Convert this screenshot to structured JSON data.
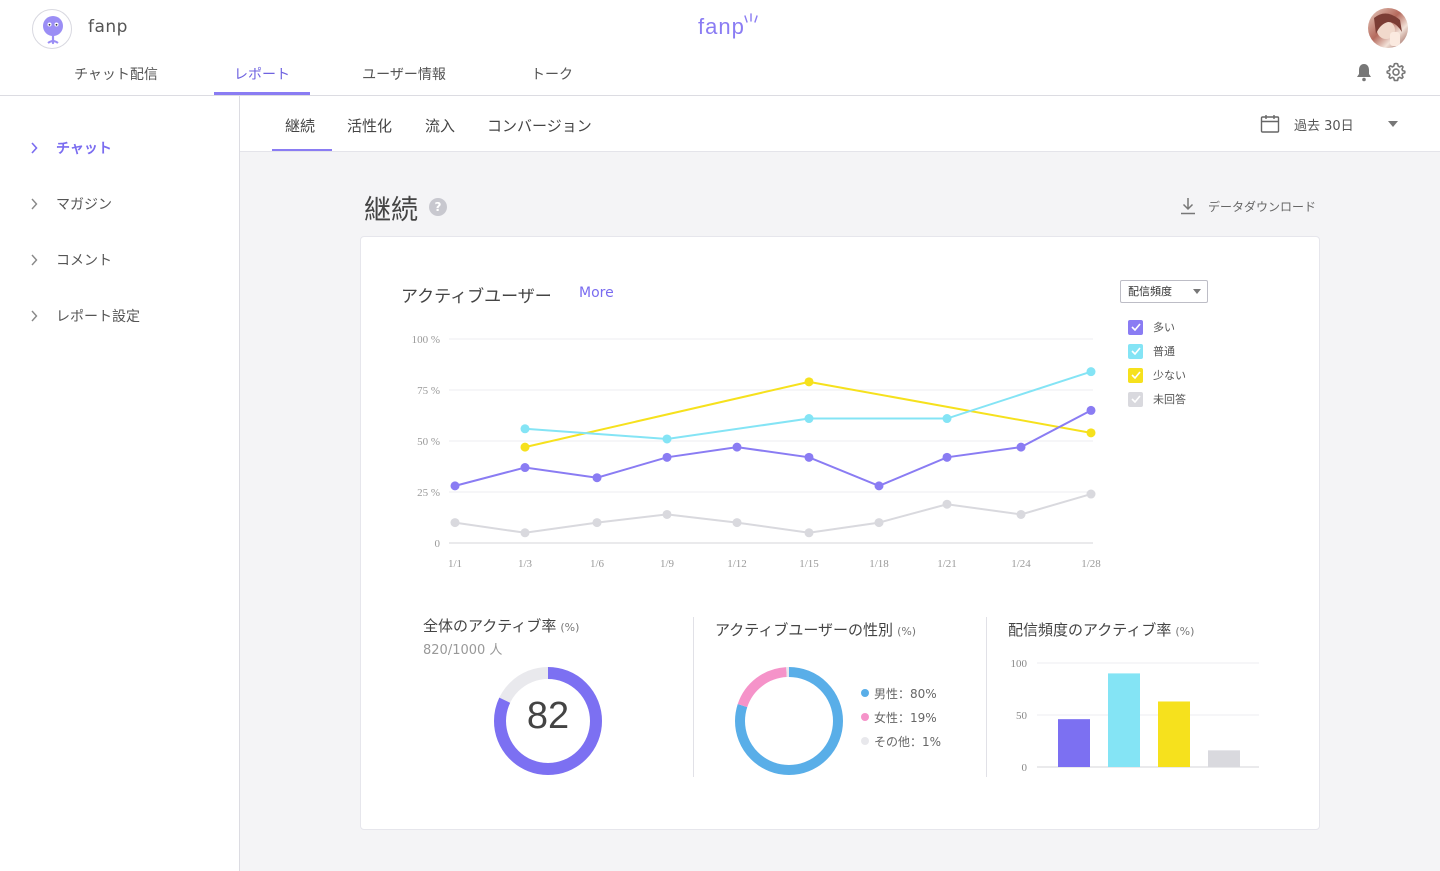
{
  "header": {
    "app_name": "fanp",
    "brand": "fanp",
    "nav_tabs": [
      "チャット配信",
      "レポート",
      "ユーザー情報",
      "トーク"
    ],
    "active_tab": "レポート"
  },
  "sidebar": {
    "items": [
      {
        "label": "チャット",
        "active": true
      },
      {
        "label": "マガジン",
        "active": false
      },
      {
        "label": "コメント",
        "active": false
      },
      {
        "label": "レポート設定",
        "active": false
      }
    ]
  },
  "subnav": {
    "tabs": [
      "継続",
      "活性化",
      "流入",
      "コンバージョン"
    ],
    "active": "継続",
    "period": "過去 30日"
  },
  "page": {
    "title": "継続",
    "help": "?",
    "download": "データダウンロード"
  },
  "active_users": {
    "title": "アクティブユーザー",
    "more": "More",
    "select_value": "配信頻度",
    "legend": [
      {
        "label": "多い",
        "color": "#8a7cf3"
      },
      {
        "label": "普通",
        "color": "#84e4f5"
      },
      {
        "label": "少ない",
        "color": "#f6e11d"
      },
      {
        "label": "未回答",
        "color": "#d9d9de"
      }
    ]
  },
  "stats": {
    "overall": {
      "title": "全体のアクティブ率",
      "unit": "(%)",
      "count": "820/1000 人",
      "value": "82"
    },
    "gender": {
      "title": "アクティブユーザーの性別",
      "unit": "(%)",
      "items": [
        {
          "label": "男性：80%",
          "color": "#59aee8"
        },
        {
          "label": "女性：19%",
          "color": "#f593c9"
        },
        {
          "label": "その他：1%",
          "color": "#e8e8ec"
        }
      ]
    },
    "frequency": {
      "title": "配信頻度のアクティブ率",
      "unit": "(%)"
    }
  },
  "chart_data": [
    {
      "type": "line",
      "title": "アクティブユーザー",
      "x": [
        "1/1",
        "1/3",
        "1/6",
        "1/9",
        "1/12",
        "1/15",
        "1/18",
        "1/21",
        "1/24",
        "1/28"
      ],
      "y_ticks": [
        "0",
        "25 %",
        "50 %",
        "75 %",
        "100 %"
      ],
      "ylim": [
        0,
        100
      ],
      "legend_position": "right",
      "series": [
        {
          "name": "多い",
          "color": "#8a7cf3",
          "values": [
            28,
            37,
            32,
            42,
            47,
            42,
            28,
            42,
            47,
            65
          ]
        },
        {
          "name": "普通",
          "color": "#84e4f5",
          "values": [
            null,
            56,
            null,
            51,
            null,
            61,
            null,
            61,
            null,
            84
          ]
        },
        {
          "name": "少ない",
          "color": "#f6e11d",
          "values": [
            null,
            47,
            null,
            null,
            null,
            79,
            null,
            null,
            null,
            54
          ]
        },
        {
          "name": "未回答",
          "color": "#d9d9de",
          "values": [
            10,
            5,
            10,
            14,
            10,
            5,
            10,
            19,
            14,
            24
          ]
        }
      ]
    },
    {
      "type": "pie",
      "title": "全体のアクティブ率",
      "values": [
        82,
        18
      ],
      "colors": [
        "#7c70f2",
        "#e9e9ed"
      ]
    },
    {
      "type": "pie",
      "title": "アクティブユーザーの性別",
      "categories": [
        "男性",
        "女性",
        "その他"
      ],
      "values": [
        80,
        19,
        1
      ],
      "colors": [
        "#59aee8",
        "#f593c9",
        "#e8e8ec"
      ]
    },
    {
      "type": "bar",
      "title": "配信頻度のアクティブ率",
      "categories": [
        "多い",
        "普通",
        "少ない",
        "未回答"
      ],
      "values": [
        46,
        90,
        63,
        16
      ],
      "colors": [
        "#7c70f2",
        "#84e4f5",
        "#f6e11d",
        "#d9d9de"
      ],
      "y_ticks": [
        "0",
        "50",
        "100"
      ],
      "ylim": [
        0,
        100
      ]
    }
  ]
}
